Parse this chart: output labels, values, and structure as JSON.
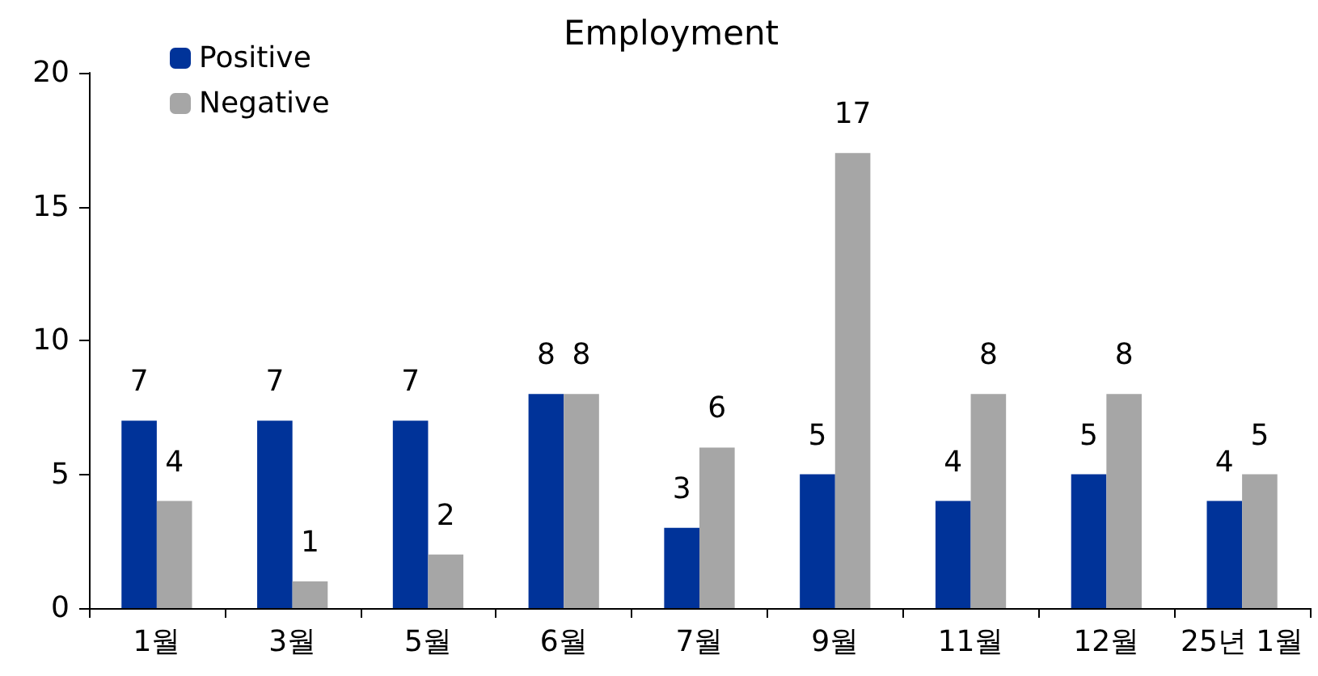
{
  "chart_data": {
    "type": "bar",
    "title": "Employment",
    "categories": [
      "1월",
      "3월",
      "5월",
      "6월",
      "7월",
      "9월",
      "11월",
      "12월",
      "25년 1월"
    ],
    "series": [
      {
        "name": "Positive",
        "color": "#003399",
        "values": [
          7,
          7,
          7,
          8,
          3,
          5,
          4,
          5,
          4
        ]
      },
      {
        "name": "Negative",
        "color": "#a6a6a6",
        "values": [
          4,
          1,
          2,
          8,
          6,
          17,
          8,
          8,
          5
        ]
      }
    ],
    "ylim": [
      0,
      20
    ],
    "yticks": [
      0,
      5,
      10,
      15,
      20
    ],
    "grid": false,
    "legend": "top left",
    "data_labels": true
  }
}
